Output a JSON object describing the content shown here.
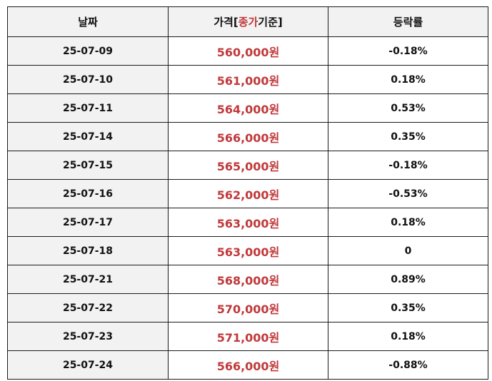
{
  "header": {
    "date": "날짜",
    "price_prefix": "가격[",
    "price_highlight": "종가",
    "price_suffix": "기준]",
    "change": "등락률"
  },
  "rows": [
    {
      "date": "25-07-09",
      "price": "560,000원",
      "change": "-0.18%"
    },
    {
      "date": "25-07-10",
      "price": "561,000원",
      "change": "0.18%"
    },
    {
      "date": "25-07-11",
      "price": "564,000원",
      "change": "0.53%"
    },
    {
      "date": "25-07-14",
      "price": "566,000원",
      "change": "0.35%"
    },
    {
      "date": "25-07-15",
      "price": "565,000원",
      "change": "-0.18%"
    },
    {
      "date": "25-07-16",
      "price": "562,000원",
      "change": "-0.53%"
    },
    {
      "date": "25-07-17",
      "price": "563,000원",
      "change": "0.18%"
    },
    {
      "date": "25-07-18",
      "price": "563,000원",
      "change": "0"
    },
    {
      "date": "25-07-21",
      "price": "568,000원",
      "change": "0.89%"
    },
    {
      "date": "25-07-22",
      "price": "570,000원",
      "change": "0.35%"
    },
    {
      "date": "25-07-23",
      "price": "571,000원",
      "change": "0.18%"
    },
    {
      "date": "25-07-24",
      "price": "566,000원",
      "change": "-0.88%"
    }
  ],
  "colors": {
    "price_text": "#c0393b",
    "header_bg": "#f2f2f2",
    "border": "#1a1a1a"
  }
}
